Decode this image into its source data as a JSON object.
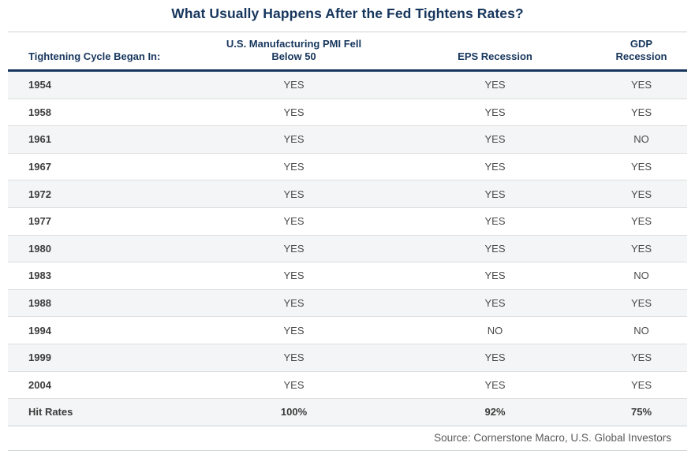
{
  "title": "What Usually Happens After the Fed Tightens Rates?",
  "chart_data": {
    "type": "table",
    "title": "What Usually Happens After the Fed Tightens Rates?",
    "columns": [
      "Tightening Cycle Began In:",
      "U.S. Manufacturing PMI Fell Below 50",
      "EPS Recession",
      "GDP Recession"
    ],
    "rows": [
      [
        "1954",
        "YES",
        "YES",
        "YES"
      ],
      [
        "1958",
        "YES",
        "YES",
        "YES"
      ],
      [
        "1961",
        "YES",
        "YES",
        "NO"
      ],
      [
        "1967",
        "YES",
        "YES",
        "YES"
      ],
      [
        "1972",
        "YES",
        "YES",
        "YES"
      ],
      [
        "1977",
        "YES",
        "YES",
        "YES"
      ],
      [
        "1980",
        "YES",
        "YES",
        "YES"
      ],
      [
        "1983",
        "YES",
        "YES",
        "NO"
      ],
      [
        "1988",
        "YES",
        "YES",
        "YES"
      ],
      [
        "1994",
        "YES",
        "NO",
        "NO"
      ],
      [
        "1999",
        "YES",
        "YES",
        "YES"
      ],
      [
        "2004",
        "YES",
        "YES",
        "YES"
      ],
      [
        "Hit Rates",
        "100%",
        "92%",
        "75%"
      ]
    ],
    "source": "Source: Cornerstone Macro, U.S. Global Investors",
    "layout": {
      "zebra_striping": true,
      "first_row_striped": true,
      "summary_row_bold": true
    }
  },
  "colors": {
    "navy": "#17365d",
    "stripe": "#f4f5f6",
    "row_separator": "#dddddd",
    "thin_rule": "#cdd2d6",
    "value_text": "#4a4a4a",
    "source_text": "#5a5a5a"
  }
}
